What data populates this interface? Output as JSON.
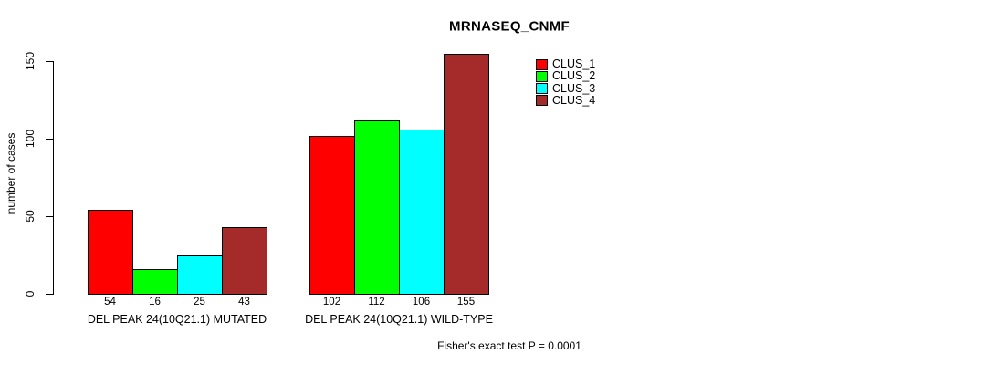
{
  "chart_data": {
    "type": "bar",
    "title": "MRNASEQ_CNMF",
    "ylabel": "number of cases",
    "xlabel": "",
    "ylim": [
      0,
      155
    ],
    "yticks": [
      0,
      50,
      100,
      150
    ],
    "grid": false,
    "legend_position": "top-right",
    "categories": [
      "DEL PEAK 24(10Q21.1) MUTATED",
      "DEL PEAK 24(10Q21.1) WILD-TYPE"
    ],
    "series": [
      {
        "name": "CLUS_1",
        "color": "#ff0000",
        "values": [
          54,
          102
        ]
      },
      {
        "name": "CLUS_2",
        "color": "#00ff00",
        "values": [
          16,
          112
        ]
      },
      {
        "name": "CLUS_3",
        "color": "#00ffff",
        "values": [
          25,
          106
        ]
      },
      {
        "name": "CLUS_4",
        "color": "#a52a2a",
        "values": [
          43,
          155
        ]
      }
    ],
    "bar_value_labels": [
      [
        54,
        16,
        25,
        43
      ],
      [
        102,
        112,
        106,
        155
      ]
    ],
    "annotation": "Fisher's exact test P = 0.0001",
    "text_color": "#000000",
    "background_color": "#ffffff"
  }
}
